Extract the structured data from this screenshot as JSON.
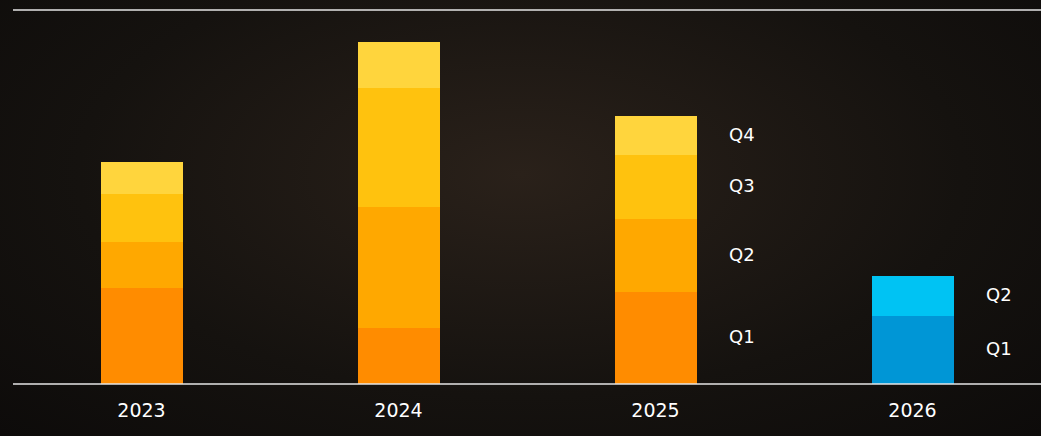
{
  "chart_data": {
    "type": "bar",
    "stacked": true,
    "categories": [
      "2023",
      "2024",
      "2025",
      "2026"
    ],
    "ylim": [
      0,
      374
    ],
    "tick_labels": "x",
    "grid": false,
    "series": [
      {
        "name": "Q1",
        "values": [
          96,
          56,
          92,
          68
        ],
        "colors": [
          "#ff8c00",
          "#ff8c00",
          "#ff8c00",
          "#0096d6"
        ]
      },
      {
        "name": "Q2",
        "values": [
          46,
          121,
          73,
          40
        ],
        "colors": [
          "#ffa800",
          "#ffa800",
          "#ffa800",
          "#00c3f3"
        ]
      },
      {
        "name": "Q3",
        "values": [
          48,
          119,
          64,
          null
        ],
        "colors": [
          "#ffc20e",
          "#ffc20e",
          "#ffc20e",
          "#ffc20e"
        ]
      },
      {
        "name": "Q4",
        "values": [
          32,
          46,
          39,
          null
        ],
        "colors": [
          "#ffd53d",
          "#ffd53d",
          "#ffd53d",
          "#ffd53d"
        ]
      }
    ]
  }
}
